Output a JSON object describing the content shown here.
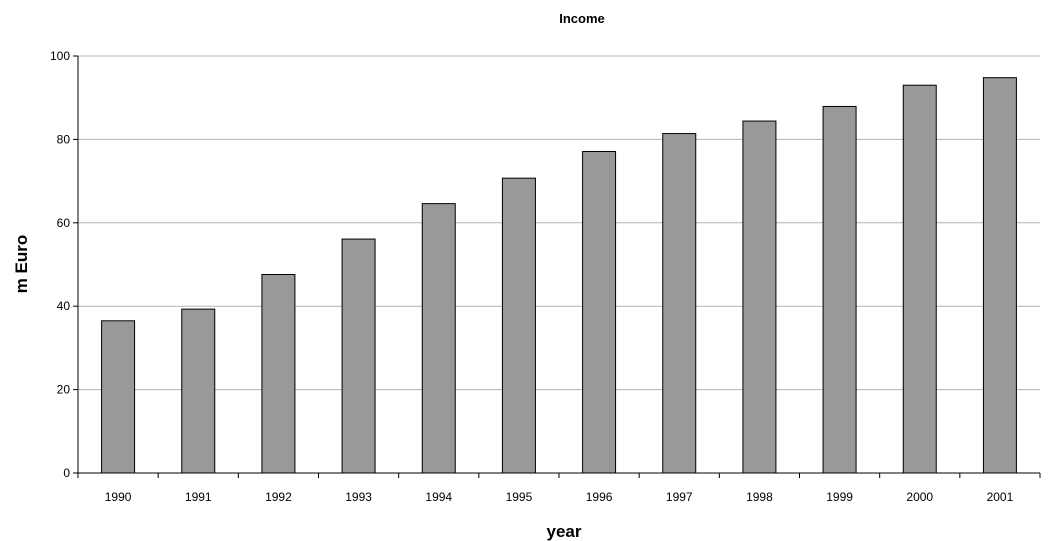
{
  "chart_data": {
    "type": "bar",
    "title": "Income",
    "xlabel": "year",
    "ylabel": "m Euro",
    "categories": [
      "1990",
      "1991",
      "1992",
      "1993",
      "1994",
      "1995",
      "1996",
      "1997",
      "1998",
      "1999",
      "2000",
      "2001"
    ],
    "values": [
      36.5,
      39.3,
      47.6,
      56.1,
      64.6,
      70.7,
      77.1,
      81.4,
      84.4,
      87.9,
      93.0,
      94.8
    ],
    "ylim": [
      0,
      100
    ],
    "yticks": [
      "0",
      "20",
      "40",
      "60",
      "80",
      "100"
    ],
    "grid": true,
    "bar_color": "#999999"
  }
}
